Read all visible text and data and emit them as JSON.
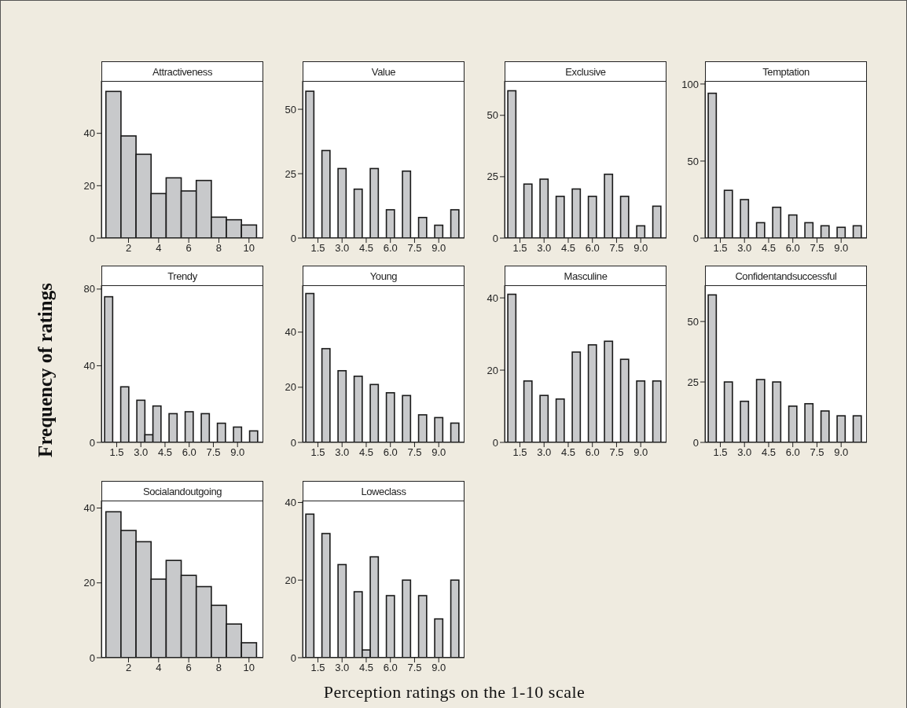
{
  "chart_data": [
    {
      "type": "histogram",
      "title": "Attractiveness",
      "color": "#c8c9cb",
      "bins": [
        0.5,
        1.5,
        2.5,
        3.5,
        4.5,
        5.5,
        6.5,
        7.5,
        8.5,
        9.5,
        10.5
      ],
      "values": [
        56,
        39,
        32,
        17,
        23,
        18,
        22,
        8,
        7,
        5
      ],
      "xlim": [
        0.2,
        10.95
      ],
      "xticks": [
        2,
        4,
        6,
        8,
        10
      ],
      "ylim": [
        0,
        60
      ],
      "yticks": [
        0,
        20,
        40
      ]
    },
    {
      "type": "histogram",
      "title": "Value",
      "color": "#c8c9cb",
      "bins": [
        0.75,
        1.25,
        1.75,
        2.25,
        2.75,
        3.25,
        3.75,
        4.25,
        4.75,
        5.25,
        5.75,
        6.25,
        6.75,
        7.25,
        7.75,
        8.25,
        8.75,
        9.25,
        9.75,
        10.25
      ],
      "values": [
        57,
        0,
        34,
        0,
        27,
        0,
        19,
        0,
        27,
        0,
        11,
        0,
        26,
        0,
        8,
        0,
        5,
        0,
        11
      ],
      "xlim": [
        0.55,
        10.6
      ],
      "xticks": [
        1.5,
        {
          "value": 3,
          "label": "3.0"
        },
        4.5,
        {
          "value": 6,
          "label": "6.0"
        },
        7.5,
        {
          "value": 9,
          "label": "9.0"
        }
      ],
      "ylim": [
        0,
        61
      ],
      "yticks": [
        0,
        25,
        50
      ]
    },
    {
      "type": "histogram",
      "title": "Exclusive",
      "color": "#c8c9cb",
      "bins": [
        0.75,
        1.25,
        1.75,
        2.25,
        2.75,
        3.25,
        3.75,
        4.25,
        4.75,
        5.25,
        5.75,
        6.25,
        6.75,
        7.25,
        7.75,
        8.25,
        8.75,
        9.25,
        9.75,
        10.25
      ],
      "values": [
        60,
        0,
        22,
        0,
        24,
        0,
        17,
        0,
        20,
        0,
        17,
        0,
        26,
        0,
        17,
        0,
        5,
        0,
        13
      ],
      "xlim": [
        0.55,
        10.6
      ],
      "xticks": [
        1.5,
        {
          "value": 3,
          "label": "3.0"
        },
        4.5,
        {
          "value": 6,
          "label": "6.0"
        },
        7.5,
        {
          "value": 9,
          "label": "9.0"
        }
      ],
      "ylim": [
        0,
        64
      ],
      "yticks": [
        0,
        25,
        50
      ]
    },
    {
      "type": "histogram",
      "title": "Temptation",
      "color": "#c8c9cb",
      "bins": [
        0.75,
        1.25,
        1.75,
        2.25,
        2.75,
        3.25,
        3.75,
        4.25,
        4.75,
        5.25,
        5.75,
        6.25,
        6.75,
        7.25,
        7.75,
        8.25,
        8.75,
        9.25,
        9.75,
        10.25
      ],
      "values": [
        94,
        0,
        31,
        0,
        25,
        0,
        10,
        0,
        20,
        0,
        15,
        0,
        10,
        0,
        8,
        0,
        7,
        0,
        8
      ],
      "xlim": [
        0.55,
        10.6
      ],
      "xticks": [
        1.5,
        {
          "value": 3,
          "label": "3.0"
        },
        4.5,
        {
          "value": 6,
          "label": "6.0"
        },
        7.5,
        {
          "value": 9,
          "label": "9.0"
        }
      ],
      "ylim": [
        0,
        102
      ],
      "yticks": [
        0,
        50,
        100
      ]
    },
    {
      "type": "histogram",
      "title": "Trendy",
      "ylabel": "Frequency of ratings",
      "color": "#c8c9cb",
      "bins": [
        0.75,
        1.25,
        1.75,
        2.25,
        2.75,
        3.25,
        3.75,
        4.25,
        4.75,
        5.25,
        5.75,
        6.25,
        6.75,
        7.25,
        7.75,
        8.25,
        8.75,
        9.25,
        9.75,
        10.25
      ],
      "values": [
        76,
        0,
        29,
        0,
        22,
        4,
        19,
        0,
        15,
        0,
        16,
        0,
        15,
        0,
        10,
        0,
        8,
        0,
        6
      ],
      "xlim": [
        0.55,
        10.6
      ],
      "xticks": [
        1.5,
        {
          "value": 3,
          "label": "3.0"
        },
        4.5,
        {
          "value": 6,
          "label": "6.0"
        },
        7.5,
        {
          "value": 9,
          "label": "9.0"
        }
      ],
      "ylim": [
        0,
        82
      ],
      "yticks": [
        0,
        40,
        80
      ]
    },
    {
      "type": "histogram",
      "title": "Young",
      "color": "#c8c9cb",
      "bins": [
        0.75,
        1.25,
        1.75,
        2.25,
        2.75,
        3.25,
        3.75,
        4.25,
        4.75,
        5.25,
        5.75,
        6.25,
        6.75,
        7.25,
        7.75,
        8.25,
        8.75,
        9.25,
        9.75,
        10.25
      ],
      "values": [
        54,
        0,
        34,
        0,
        26,
        0,
        24,
        0,
        21,
        0,
        18,
        0,
        17,
        0,
        10,
        0,
        9,
        0,
        7
      ],
      "xlim": [
        0.55,
        10.6
      ],
      "xticks": [
        1.5,
        {
          "value": 3,
          "label": "3.0"
        },
        4.5,
        {
          "value": 6,
          "label": "6.0"
        },
        7.5,
        {
          "value": 9,
          "label": "9.0"
        }
      ],
      "ylim": [
        0,
        57
      ],
      "yticks": [
        0,
        20,
        40
      ]
    },
    {
      "type": "histogram",
      "title": "Masculine",
      "color": "#c8c9cb",
      "bins": [
        0.75,
        1.25,
        1.75,
        2.25,
        2.75,
        3.25,
        3.75,
        4.25,
        4.75,
        5.25,
        5.75,
        6.25,
        6.75,
        7.25,
        7.75,
        8.25,
        8.75,
        9.25,
        9.75,
        10.25
      ],
      "values": [
        41,
        0,
        17,
        0,
        13,
        0,
        12,
        0,
        25,
        0,
        27,
        0,
        28,
        0,
        23,
        0,
        17,
        0,
        17
      ],
      "xlim": [
        0.55,
        10.6
      ],
      "xticks": [
        1.5,
        {
          "value": 3,
          "label": "3.0"
        },
        4.5,
        {
          "value": 6,
          "label": "6.0"
        },
        7.5,
        {
          "value": 9,
          "label": "9.0"
        }
      ],
      "ylim": [
        0,
        43.5
      ],
      "yticks": [
        0,
        20,
        40
      ]
    },
    {
      "type": "histogram",
      "title": "Confidentandsuccessful",
      "color": "#c8c9cb",
      "bins": [
        0.75,
        1.25,
        1.75,
        2.25,
        2.75,
        3.25,
        3.75,
        4.25,
        4.75,
        5.25,
        5.75,
        6.25,
        6.75,
        7.25,
        7.75,
        8.25,
        8.75,
        9.25,
        9.75,
        10.25
      ],
      "values": [
        61,
        0,
        25,
        0,
        17,
        0,
        26,
        0,
        25,
        0,
        15,
        0,
        16,
        0,
        13,
        0,
        11,
        0,
        11
      ],
      "xlim": [
        0.55,
        10.6
      ],
      "xticks": [
        1.5,
        {
          "value": 3,
          "label": "3.0"
        },
        4.5,
        {
          "value": 6,
          "label": "6.0"
        },
        7.5,
        {
          "value": 9,
          "label": "9.0"
        }
      ],
      "ylim": [
        0,
        65
      ],
      "yticks": [
        0,
        25,
        50
      ]
    },
    {
      "type": "histogram",
      "title": "Socialandoutgoing",
      "color": "#c8c9cb",
      "bins": [
        0.5,
        1.5,
        2.5,
        3.5,
        4.5,
        5.5,
        6.5,
        7.5,
        8.5,
        9.5,
        10.5
      ],
      "values": [
        39,
        34,
        31,
        21,
        26,
        22,
        19,
        14,
        9,
        4
      ],
      "xlim": [
        0.2,
        10.95
      ],
      "xticks": [
        2,
        4,
        6,
        8,
        10
      ],
      "ylim": [
        0,
        42
      ],
      "yticks": [
        0,
        20,
        40
      ]
    },
    {
      "type": "histogram",
      "title": "Loweclass",
      "xlabel": "Perception ratings on the 1-10 scale",
      "color": "#c8c9cb",
      "bins": [
        0.75,
        1.25,
        1.75,
        2.25,
        2.75,
        3.25,
        3.75,
        4.25,
        4.75,
        5.25,
        5.75,
        6.25,
        6.75,
        7.25,
        7.75,
        8.25,
        8.75,
        9.25,
        9.75,
        10.25
      ],
      "values": [
        37,
        0,
        32,
        0,
        24,
        0,
        17,
        2,
        26,
        0,
        16,
        0,
        20,
        0,
        16,
        0,
        10,
        0,
        20
      ],
      "xlim": [
        0.55,
        10.6
      ],
      "xticks": [
        1.5,
        {
          "value": 3,
          "label": "3.0"
        },
        4.5,
        {
          "value": 6,
          "label": "6.0"
        },
        7.5,
        {
          "value": 9,
          "label": "9.0"
        }
      ],
      "ylim": [
        0,
        40.5
      ],
      "yticks": [
        0,
        20,
        40
      ]
    }
  ]
}
